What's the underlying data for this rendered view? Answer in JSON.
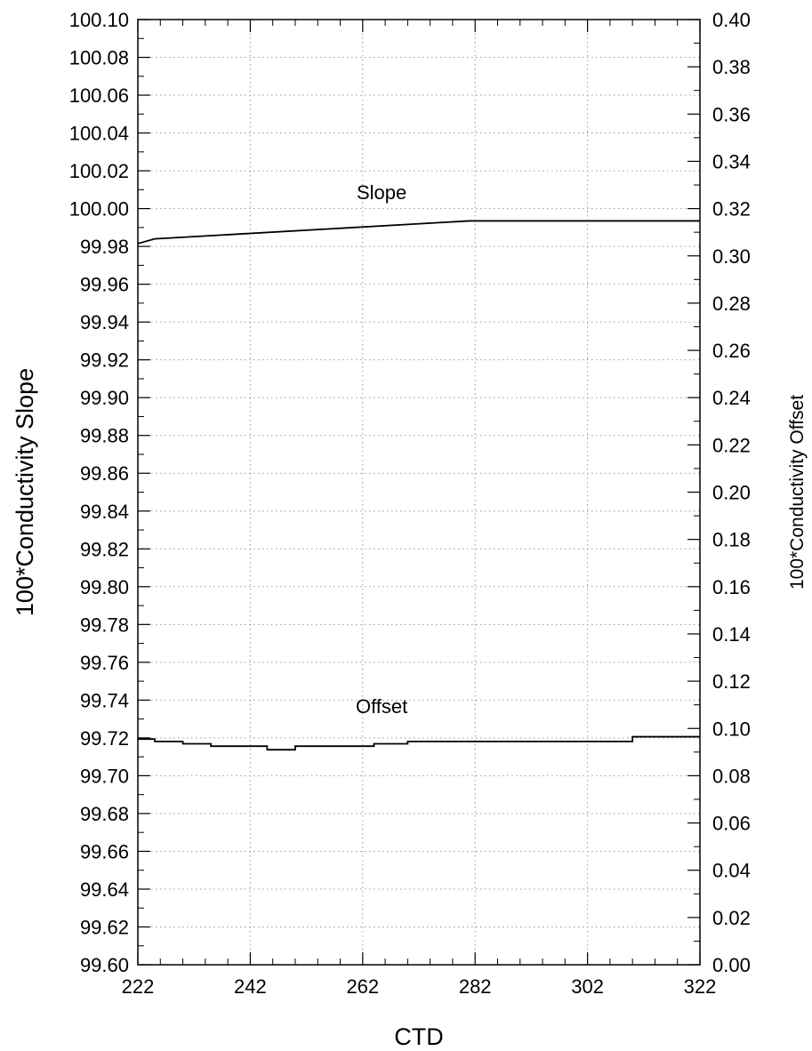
{
  "chart_data": {
    "type": "line",
    "xlabel": "CTD",
    "ylabel": "100*Conductivity Slope",
    "y2label": "100*Conductivity Offset",
    "xlim": [
      222,
      322
    ],
    "ylim": [
      99.6,
      100.1
    ],
    "y2lim": [
      0.0,
      0.4
    ],
    "x_ticks": [
      "222",
      "242",
      "262",
      "282",
      "302",
      "322"
    ],
    "y_ticks": [
      "99.60",
      "99.62",
      "99.64",
      "99.66",
      "99.68",
      "99.70",
      "99.72",
      "99.74",
      "99.76",
      "99.78",
      "99.80",
      "99.82",
      "99.84",
      "99.86",
      "99.88",
      "99.90",
      "99.92",
      "99.94",
      "99.96",
      "99.98",
      "100.00",
      "100.02",
      "100.04",
      "100.06",
      "100.08",
      "100.10"
    ],
    "y2_ticks": [
      "0.00",
      "0.02",
      "0.04",
      "0.06",
      "0.08",
      "0.10",
      "0.12",
      "0.14",
      "0.16",
      "0.18",
      "0.20",
      "0.22",
      "0.24",
      "0.26",
      "0.28",
      "0.30",
      "0.32",
      "0.34",
      "0.36",
      "0.38",
      "0.40"
    ],
    "grid": true,
    "series": [
      {
        "name": "Slope",
        "axis": "left",
        "x": [
          222,
          225,
          281,
          322
        ],
        "y": [
          99.9815,
          99.984,
          99.9935,
          99.9935
        ],
        "label_at": [
          263,
          100.005
        ]
      },
      {
        "name": "Offset",
        "axis": "right",
        "step": true,
        "x": [
          222,
          225,
          230,
          235,
          245,
          250,
          264,
          270,
          310,
          322
        ],
        "y": [
          0.0955,
          0.0945,
          0.0935,
          0.0925,
          0.091,
          0.0925,
          0.0935,
          0.0945,
          0.0965,
          0.0965
        ],
        "label_at": [
          263,
          0.1065
        ]
      }
    ]
  }
}
